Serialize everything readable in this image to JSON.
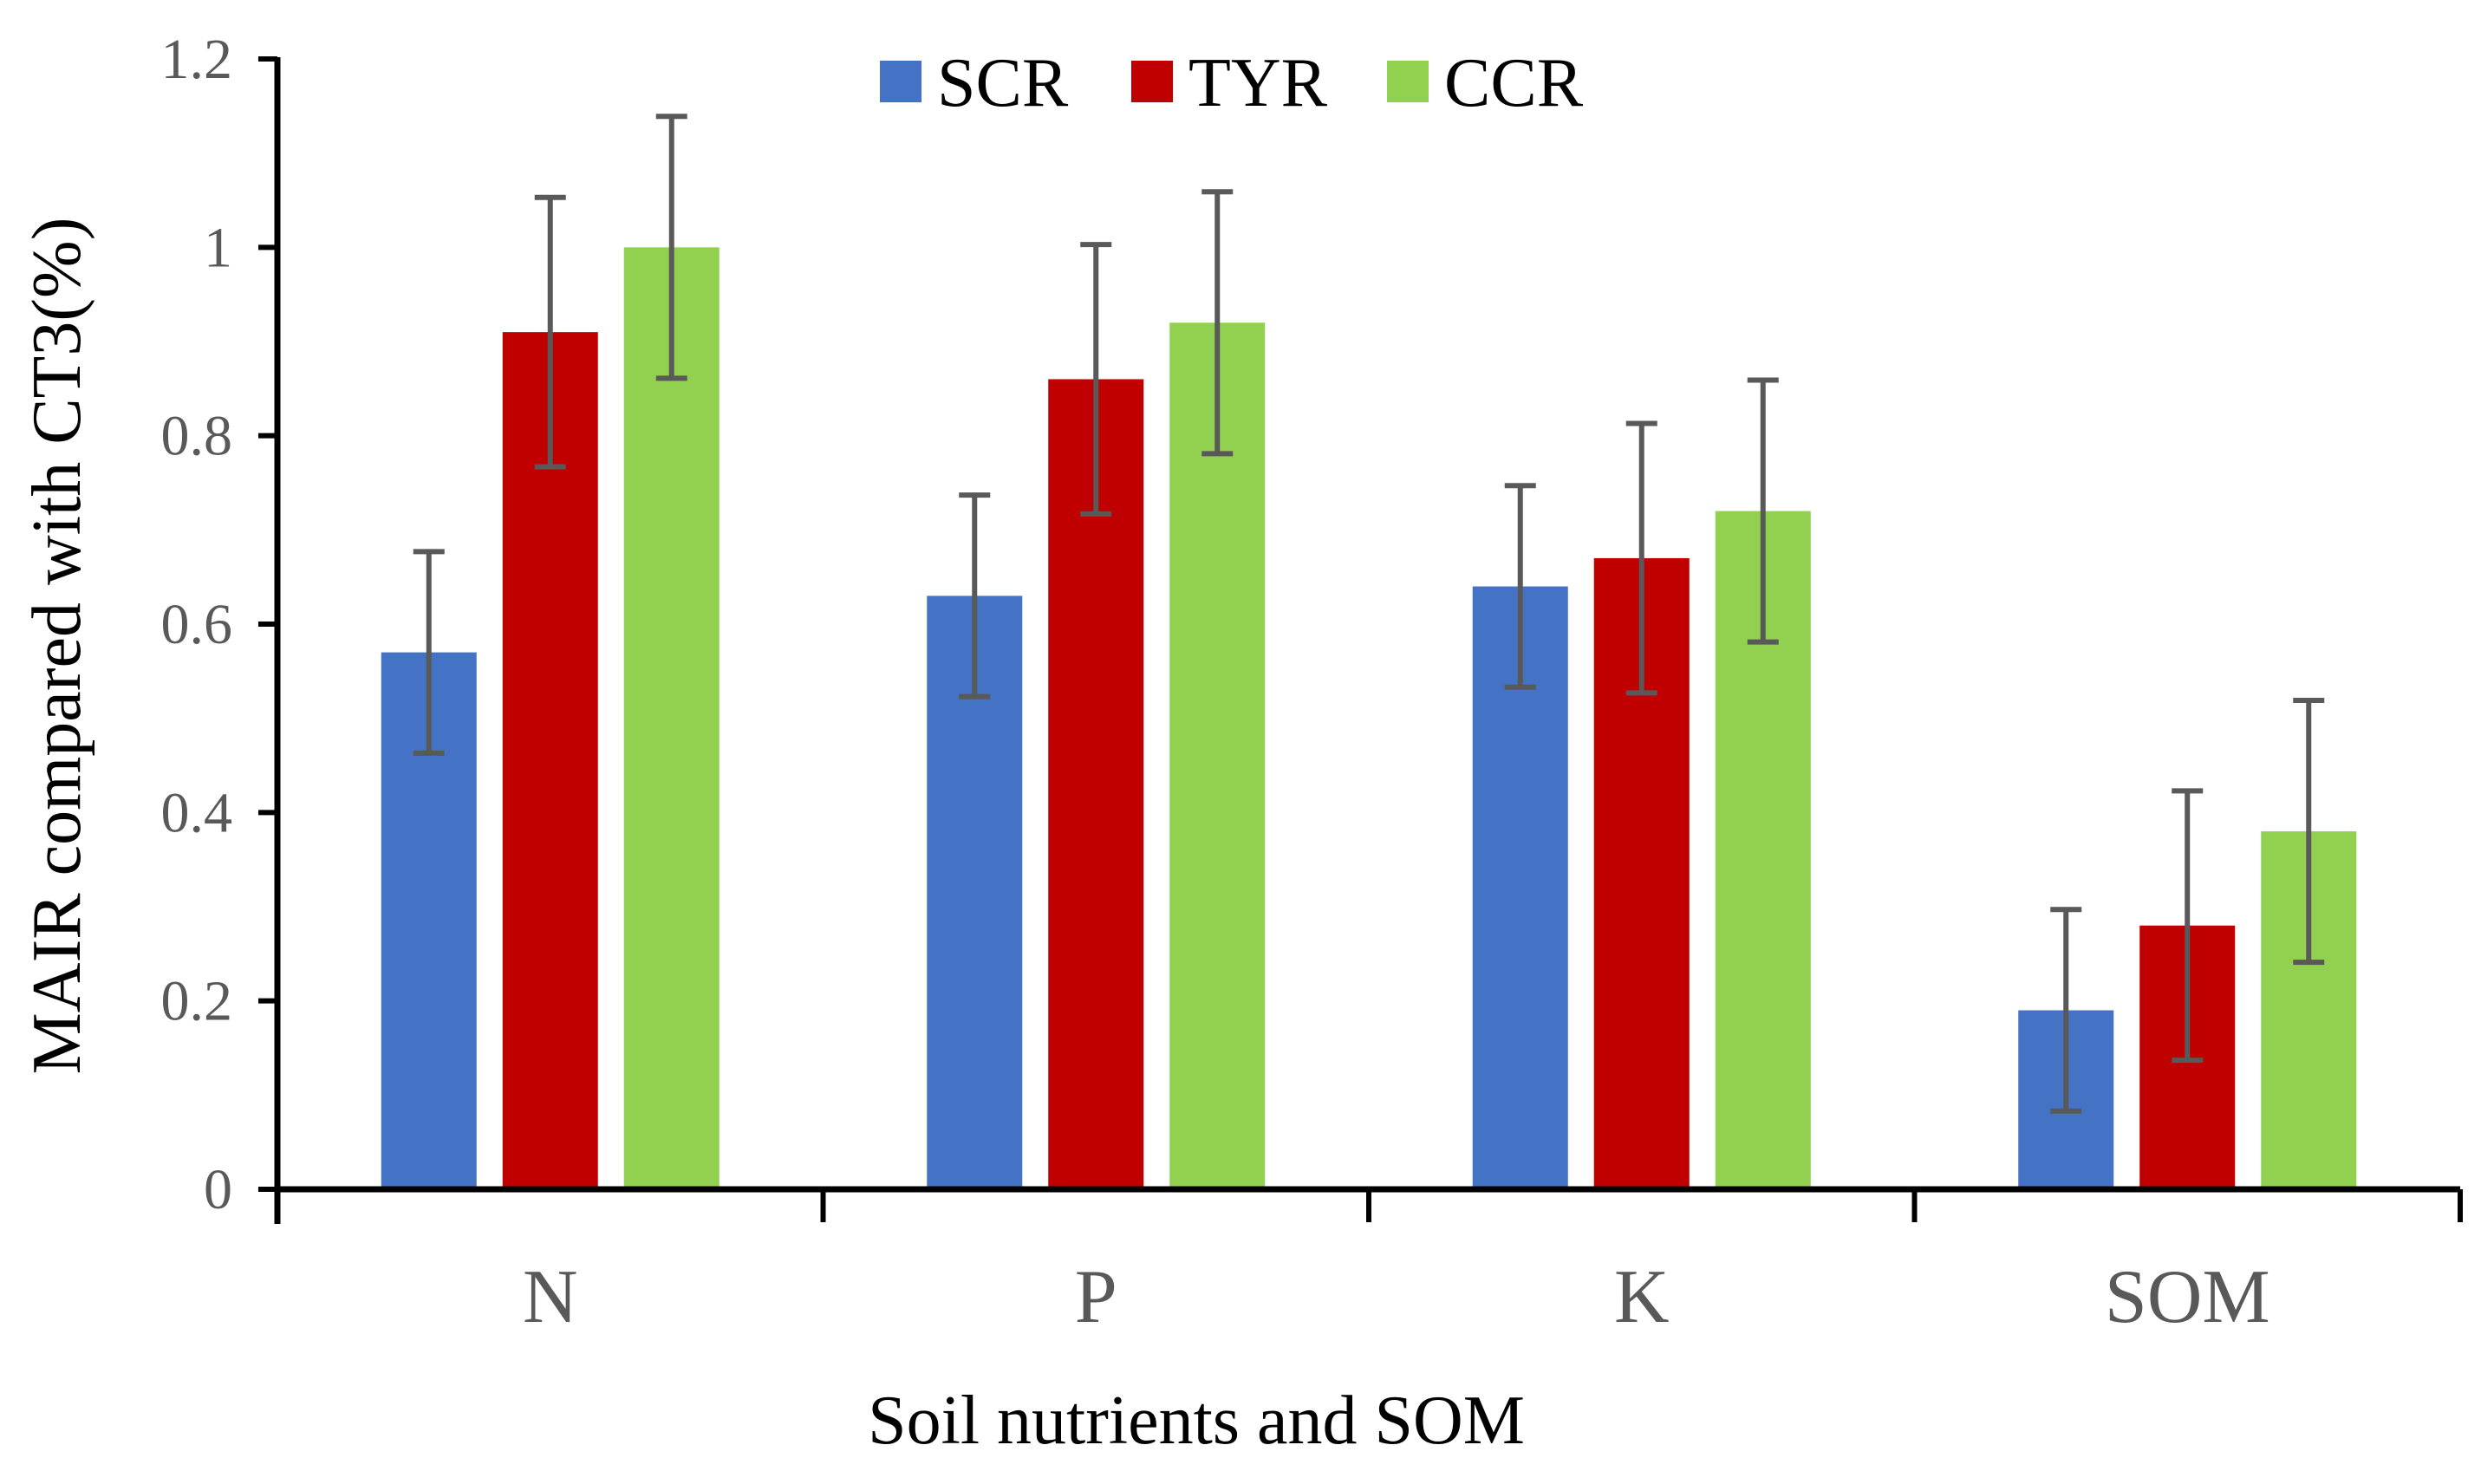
{
  "chart_data": {
    "type": "bar",
    "title": "",
    "xlabel": "Soil nutrients and SOM",
    "ylabel": "MAIR compared with CT3(%)",
    "categories": [
      "N",
      "P",
      "K",
      "SOM"
    ],
    "ylim": [
      0,
      1.2
    ],
    "yticks": [
      {
        "value": 0,
        "label": "0"
      },
      {
        "value": 0.2,
        "label": "0.2"
      },
      {
        "value": 0.4,
        "label": "0.4"
      },
      {
        "value": 0.6,
        "label": "0.6"
      },
      {
        "value": 0.8,
        "label": "0.8"
      },
      {
        "value": 1.0,
        "label": "1"
      },
      {
        "value": 1.2,
        "label": "1.2"
      }
    ],
    "grid": false,
    "legend_position": "top-center",
    "series": [
      {
        "name": "SCR",
        "color": "#4472C4",
        "values": [
          0.57,
          0.63,
          0.64,
          0.19
        ],
        "errors": [
          0.107,
          0.107,
          0.107,
          0.107
        ]
      },
      {
        "name": "TYR",
        "color": "#C00000",
        "values": [
          0.91,
          0.86,
          0.67,
          0.28
        ],
        "errors": [
          0.143,
          0.143,
          0.143,
          0.143
        ]
      },
      {
        "name": "CCR",
        "color": "#92D050",
        "values": [
          1.0,
          0.92,
          0.72,
          0.38
        ],
        "errors": [
          0.139,
          0.139,
          0.139,
          0.139
        ]
      }
    ]
  }
}
